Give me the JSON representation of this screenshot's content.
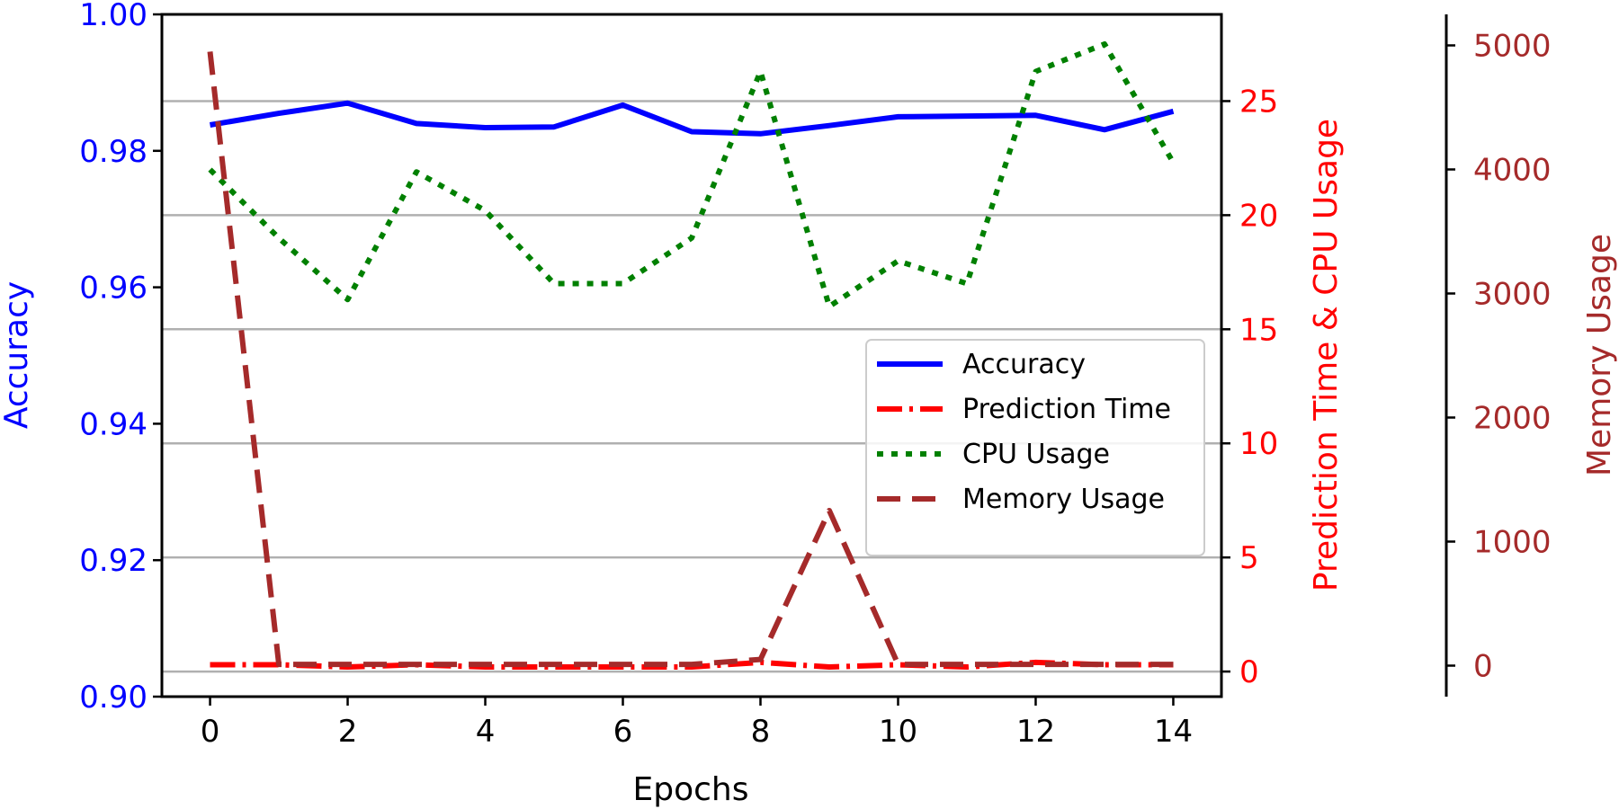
{
  "chart_data": {
    "type": "line",
    "xlabel": "Epochs",
    "ylabel_left": "Accuracy",
    "ylabel_right1": "Prediction Time & CPU Usage",
    "ylabel_right2": "Memory Usage",
    "x": [
      0,
      1,
      2,
      3,
      4,
      5,
      6,
      7,
      8,
      9,
      10,
      11,
      12,
      13,
      14
    ],
    "xlim": [
      -0.7,
      14.7
    ],
    "x_ticks": [
      0,
      2,
      4,
      6,
      8,
      10,
      12,
      14
    ],
    "x_tick_labels": [
      "0",
      "2",
      "4",
      "6",
      "8",
      "10",
      "12",
      "14"
    ],
    "y_left": {
      "lim": [
        0.9,
        1.0
      ],
      "ticks": [
        0.9,
        0.92,
        0.94,
        0.96,
        0.98,
        1.0
      ],
      "tick_labels": [
        "0.90",
        "0.92",
        "0.94",
        "0.96",
        "0.98",
        "1.00"
      ],
      "color": "#0000ff"
    },
    "y_right1": {
      "lim": [
        -1.1,
        28.8
      ],
      "ticks": [
        0,
        5,
        10,
        15,
        20,
        25
      ],
      "tick_labels": [
        "0",
        "5",
        "10",
        "15",
        "20",
        "25"
      ],
      "color": "#ff0000"
    },
    "y_right2": {
      "lim": [
        -250,
        5250
      ],
      "ticks": [
        0,
        1000,
        2000,
        3000,
        4000,
        5000
      ],
      "tick_labels": [
        "0",
        "1000",
        "2000",
        "3000",
        "4000",
        "5000"
      ],
      "color": "#a52a2a"
    },
    "grid": "horizontal",
    "legend_position": "center-right",
    "series": [
      {
        "name": "Accuracy",
        "axis": "left",
        "color": "#0000ff",
        "style": "solid",
        "values": [
          0.9838,
          0.9855,
          0.987,
          0.984,
          0.9834,
          0.9835,
          0.9867,
          0.9828,
          0.9825,
          0.9837,
          0.985,
          0.9851,
          0.9852,
          0.9831,
          0.9858
        ]
      },
      {
        "name": "Prediction Time",
        "axis": "right1",
        "color": "#ff0000",
        "style": "dashdot",
        "values": [
          0.3,
          0.3,
          0.2,
          0.3,
          0.2,
          0.2,
          0.2,
          0.2,
          0.4,
          0.2,
          0.3,
          0.2,
          0.4,
          0.3,
          0.3
        ]
      },
      {
        "name": "CPU Usage",
        "axis": "right1",
        "color": "#008000",
        "style": "dotted",
        "values": [
          22,
          19,
          16.3,
          21.9,
          20.2,
          17,
          17,
          19,
          26.3,
          16,
          18,
          17,
          26.3,
          27.5,
          22.3
        ]
      },
      {
        "name": "Memory Usage",
        "axis": "right2",
        "color": "#a52a2a",
        "style": "dashed",
        "values": [
          4950,
          10,
          10,
          10,
          10,
          10,
          10,
          10,
          50,
          1250,
          10,
          10,
          10,
          10,
          10
        ]
      }
    ]
  }
}
